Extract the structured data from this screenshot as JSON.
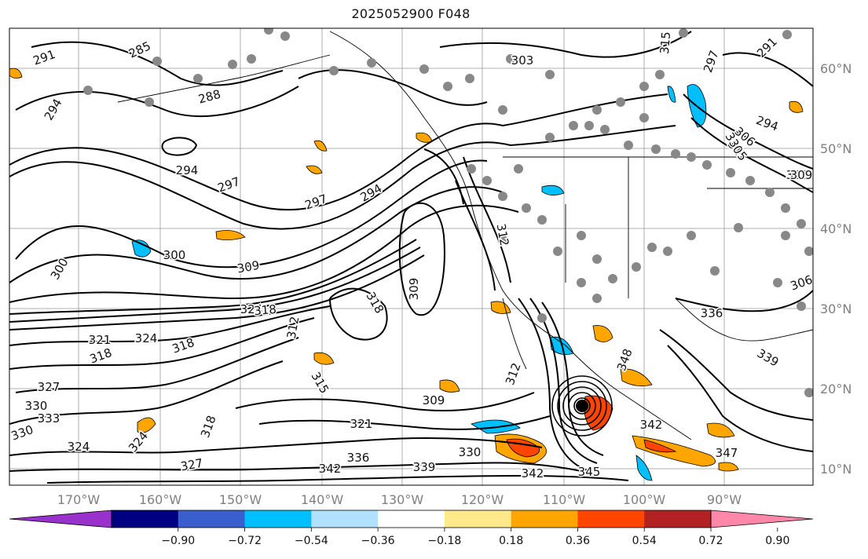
{
  "title": "2025052900 F048",
  "map": {
    "projection": "lat-lon",
    "grid": true,
    "lon_ticks": [
      "170°W",
      "160°W",
      "150°W",
      "140°W",
      "130°W",
      "120°W",
      "110°W",
      "100°W",
      "90°W"
    ],
    "lat_ticks": [
      "60°N",
      "50°N",
      "40°N",
      "30°N",
      "20°N",
      "10°N"
    ],
    "contour_labels": [
      "291",
      "285",
      "294",
      "288",
      "294",
      "297",
      "303",
      "315",
      "297",
      "291",
      "294",
      "300",
      "309",
      "294",
      "297",
      "306",
      "300",
      "315",
      "309",
      "312",
      "318",
      "324",
      "318",
      "309",
      "312",
      "309",
      "318",
      "321",
      "324",
      "318",
      "315",
      "327",
      "330",
      "333",
      "330",
      "324",
      "324",
      "327",
      "321",
      "336",
      "342",
      "339",
      "330",
      "342",
      "345",
      "342",
      "312",
      "347",
      "336",
      "348",
      "339",
      "306",
      "309",
      "318",
      "330"
    ],
    "station_dot_color": "#888888",
    "contour_color": "#000000"
  },
  "colorbar": {
    "ticks": [
      "−0.90",
      "−0.72",
      "−0.54",
      "−0.36",
      "−0.18",
      "0.18",
      "0.36",
      "0.54",
      "0.72",
      "0.90"
    ],
    "colors": [
      "#9932cc",
      "#000080",
      "#3a5fcd",
      "#00bfff",
      "#b0e2ff",
      "#ffffff",
      "#ffe98a",
      "#ffa500",
      "#ff4500",
      "#b22222",
      "#ff88aa"
    ]
  }
}
